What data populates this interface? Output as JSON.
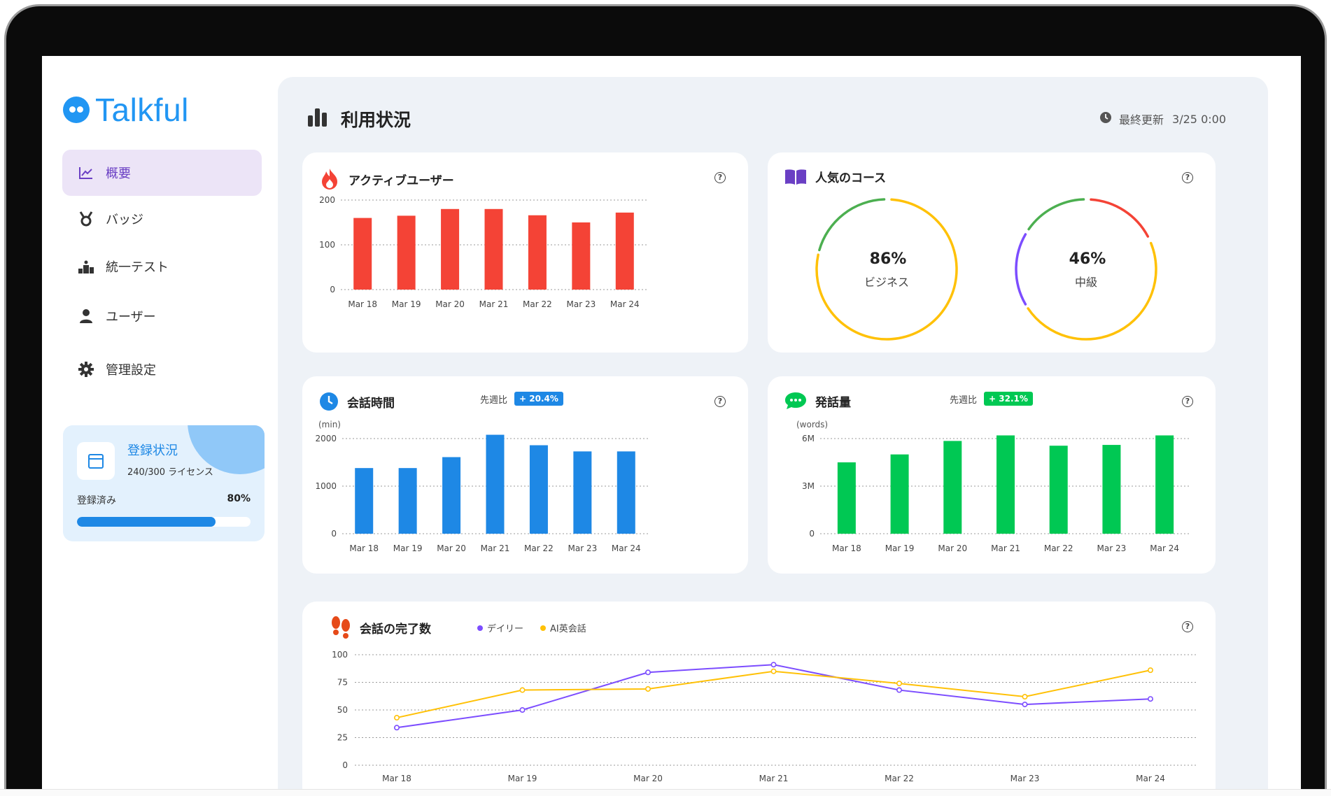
{
  "app": {
    "name": "Talkful"
  },
  "sidebar": {
    "items": [
      {
        "id": "overview",
        "label": "概要",
        "icon": "line-chart-icon",
        "active": true
      },
      {
        "id": "badges",
        "label": "バッジ",
        "icon": "medal-icon",
        "active": false
      },
      {
        "id": "test",
        "label": "統一テスト",
        "icon": "podium-icon",
        "active": false
      },
      {
        "id": "users",
        "label": "ユーザー",
        "icon": "user-icon",
        "active": false
      },
      {
        "id": "settings",
        "label": "管理設定",
        "icon": "gear-icon",
        "active": false
      }
    ],
    "registration": {
      "title": "登録状況",
      "licenses": "240/300 ライセンス",
      "label": "登録済み",
      "percent_text": "80%",
      "percent": 0.8
    }
  },
  "header": {
    "title": "利用状況",
    "updated_label": "最終更新",
    "updated_value": "3/25 0:00"
  },
  "cards": {
    "active_users": {
      "title": "アクティブユーザー"
    },
    "popular_courses": {
      "title": "人気のコース"
    },
    "talk_time": {
      "title": "会話時間",
      "compare_label": "先週比",
      "compare_value": "+ 20.4%",
      "unit": "(min)"
    },
    "speech_volume": {
      "title": "発話量",
      "compare_label": "先週比",
      "compare_value": "+ 32.1%",
      "unit": "(words)"
    },
    "completions": {
      "title": "会話の完了数"
    }
  },
  "colors": {
    "active_users": "#f44336",
    "talk_time": "#1e88e5",
    "speech_volume": "#00c853",
    "daily": "#7c4dff",
    "ai": "#ffc107",
    "accent": "#6a3fc4"
  },
  "chart_data": [
    {
      "id": "active_users",
      "type": "bar",
      "categories": [
        "Mar 18",
        "Mar 19",
        "Mar 20",
        "Mar 21",
        "Mar 22",
        "Mar 23",
        "Mar 24"
      ],
      "values": [
        160,
        165,
        180,
        180,
        166,
        150,
        172
      ],
      "yticks": [
        "0",
        "100",
        "200"
      ],
      "ylim": [
        0,
        200
      ]
    },
    {
      "id": "popular_courses",
      "type": "pie",
      "items": [
        {
          "label": "ビジネス",
          "value_text": "86%",
          "value": 86
        },
        {
          "label": "中級",
          "value_text": "46%",
          "value": 46
        }
      ]
    },
    {
      "id": "talk_time",
      "type": "bar",
      "categories": [
        "Mar 18",
        "Mar 19",
        "Mar 20",
        "Mar 21",
        "Mar 22",
        "Mar 23",
        "Mar 24"
      ],
      "values": [
        1380,
        1380,
        1610,
        2080,
        1860,
        1730,
        1730
      ],
      "yticks": [
        "0",
        "1000",
        "2000"
      ],
      "ylim": [
        0,
        2000
      ]
    },
    {
      "id": "speech_volume",
      "type": "bar",
      "categories": [
        "Mar 18",
        "Mar 19",
        "Mar 20",
        "Mar 21",
        "Mar 22",
        "Mar 23",
        "Mar 24"
      ],
      "values": [
        4.5,
        5.0,
        5.85,
        6.2,
        5.55,
        5.6,
        6.2
      ],
      "yticks": [
        "0",
        "3M",
        "6M"
      ],
      "ylim": [
        0,
        6
      ]
    },
    {
      "id": "completions",
      "type": "line",
      "categories": [
        "Mar 18",
        "Mar 19",
        "Mar 20",
        "Mar 21",
        "Mar 22",
        "Mar 23",
        "Mar 24"
      ],
      "yticks": [
        "0",
        "25",
        "50",
        "75",
        "100"
      ],
      "ylim": [
        0,
        100
      ],
      "series": [
        {
          "name": "デイリー",
          "values": [
            34,
            50,
            84,
            91,
            68,
            55,
            60
          ]
        },
        {
          "name": "AI英会話",
          "values": [
            43,
            68,
            69,
            85,
            74,
            62,
            86
          ]
        }
      ]
    }
  ]
}
